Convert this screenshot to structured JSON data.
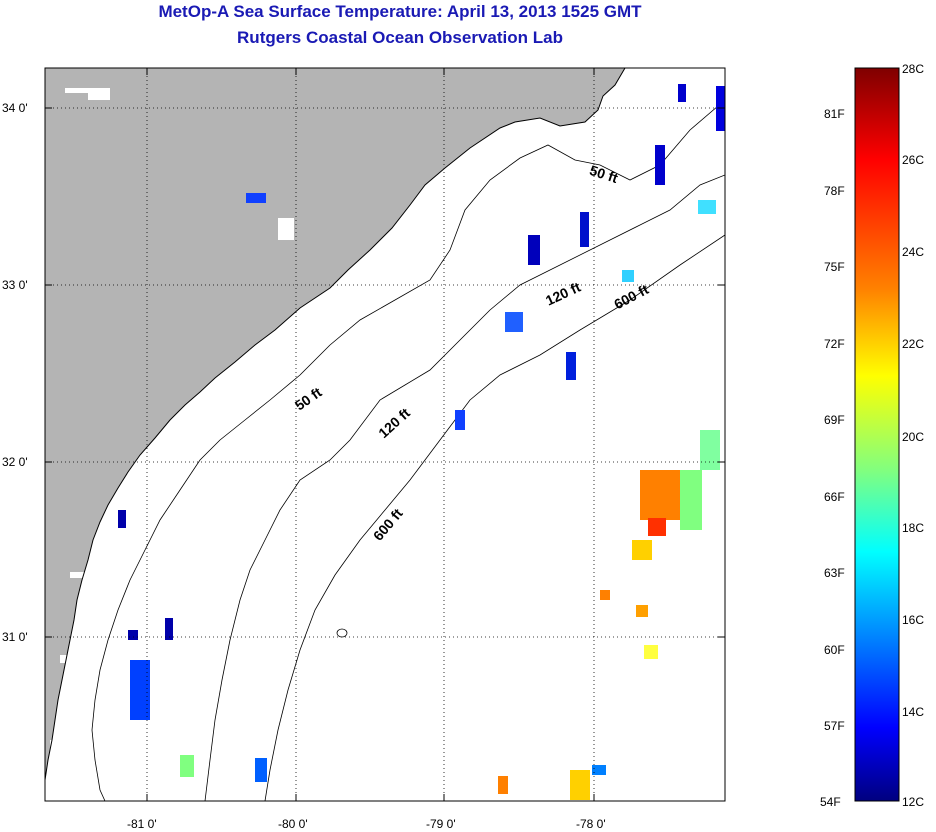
{
  "titles": {
    "line1": "MetOp-A Sea Surface Temperature:  April 13, 2013 1525 GMT",
    "line2": "Rutgers Coastal Ocean Observation Lab"
  },
  "map": {
    "lat_labels": [
      "34 0'",
      "33 0'",
      "32 0'",
      "31 0'"
    ],
    "lon_labels": [
      "-81 0'",
      "-80 0'",
      "-79 0'",
      "-78 0'"
    ],
    "contour_labels": [
      "50 ft",
      "120 ft",
      "600 ft",
      "50 ft",
      "120 ft",
      "600 ft"
    ],
    "colors": {
      "land": "#b4b4b4",
      "ocean": "#ffffff",
      "frame": "#000000",
      "title": "#1a1ab4"
    }
  },
  "colorbar": {
    "fahrenheit_labels": [
      "81F",
      "78F",
      "75F",
      "72F",
      "69F",
      "66F",
      "63F",
      "60F",
      "57F",
      "54F"
    ],
    "celsius_labels": [
      "28C",
      "26C",
      "24C",
      "22C",
      "20C",
      "18C",
      "16C",
      "14C",
      "12C"
    ],
    "stops": [
      "#7f0000",
      "#ff0000",
      "#ff8000",
      "#ffff00",
      "#80ff80",
      "#00ffff",
      "#0080ff",
      "#0000ff",
      "#00007f"
    ]
  }
}
